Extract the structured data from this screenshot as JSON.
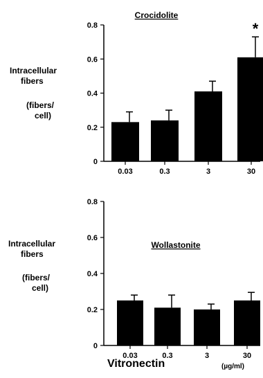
{
  "chart_data": [
    {
      "type": "bar",
      "title": "Crocidolite",
      "ylabel": [
        "Intracellular",
        "fibers"
      ],
      "yunit": [
        "(fibers/",
        "cell)"
      ],
      "categories": [
        "0.03",
        "0.3",
        "3",
        "30"
      ],
      "values": [
        0.23,
        0.24,
        0.41,
        0.61
      ],
      "error": [
        0.06,
        0.06,
        0.06,
        0.12
      ],
      "annotations": [
        "",
        "",
        "",
        "*"
      ],
      "ylim": [
        0,
        0.8
      ],
      "yticks": [
        "0",
        "0.2",
        "0.4",
        "0.6",
        "0.8"
      ],
      "grid": false,
      "bar_color": "#000000"
    },
    {
      "type": "bar",
      "title": "Wollastonite",
      "ylabel": [
        "Intracellular",
        "fibers"
      ],
      "yunit": [
        "(fibers/",
        "cell)"
      ],
      "categories": [
        "0.03",
        "0.3",
        "3",
        "30"
      ],
      "values": [
        0.25,
        0.21,
        0.2,
        0.25
      ],
      "error": [
        0.03,
        0.07,
        0.03,
        0.045
      ],
      "annotations": [
        "",
        "",
        "",
        ""
      ],
      "ylim": [
        0,
        0.8
      ],
      "yticks": [
        "0",
        "0.2",
        "0.4",
        "0.6",
        "0.8"
      ],
      "grid": false,
      "bar_color": "#000000"
    }
  ],
  "xlabel": "Vitronectin",
  "xunit": "(µg/ml)"
}
